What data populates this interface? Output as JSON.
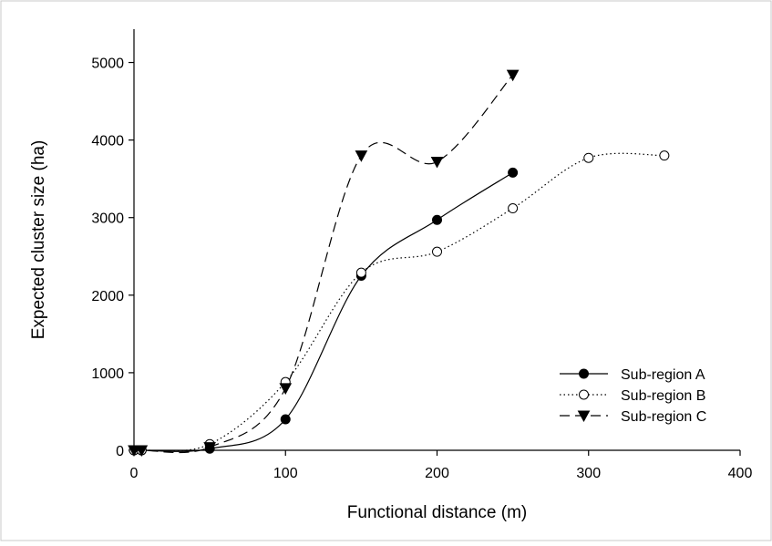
{
  "chart_data": {
    "type": "line",
    "title": "",
    "xlabel": "Functional distance (m)",
    "ylabel": "Expected cluster size (ha)",
    "xlim": [
      0,
      400
    ],
    "ylim": [
      0,
      5500
    ],
    "x_ticks": [
      0,
      100,
      200,
      300,
      400
    ],
    "y_ticks": [
      0,
      1000,
      2000,
      3000,
      4000,
      5000
    ],
    "x_tick_labels": [
      "0",
      "100",
      "200",
      "300",
      "400"
    ],
    "y_tick_labels": [
      "0",
      "1000",
      "2000",
      "3000",
      "4000",
      "5000"
    ],
    "grid": false,
    "legend_position": "bottom-right",
    "series": [
      {
        "name": "Sub-region A",
        "marker": "filled-circle",
        "line_style": "solid",
        "x": [
          0,
          5,
          50,
          100,
          150,
          200,
          250
        ],
        "y": [
          0,
          0,
          20,
          400,
          2250,
          2970,
          3580
        ]
      },
      {
        "name": "Sub-region B",
        "marker": "open-circle",
        "line_style": "dotted",
        "x": [
          0,
          5,
          50,
          100,
          150,
          200,
          250,
          300,
          350
        ],
        "y": [
          0,
          0,
          80,
          880,
          2290,
          2560,
          3120,
          3770,
          3800
        ]
      },
      {
        "name": "Sub-region C",
        "marker": "filled-triangle-down",
        "line_style": "dashed",
        "x": [
          0,
          5,
          50,
          100,
          150,
          200,
          250
        ],
        "y": [
          0,
          0,
          40,
          800,
          3800,
          3720,
          4840
        ]
      }
    ]
  }
}
